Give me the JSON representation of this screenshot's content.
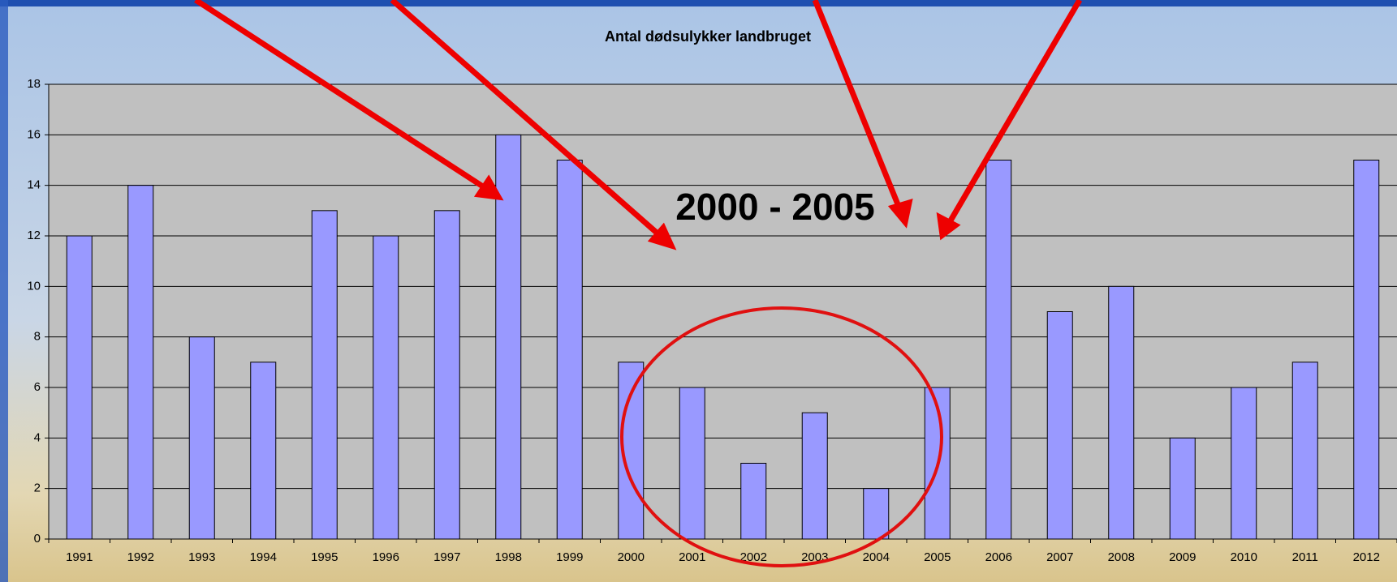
{
  "chart_data": {
    "type": "bar",
    "title": "Antal dødsulykker landbruget",
    "annotation": "2000 - 2005",
    "categories": [
      "1991",
      "1992",
      "1993",
      "1994",
      "1995",
      "1996",
      "1997",
      "1998",
      "1999",
      "2000",
      "2001",
      "2002",
      "2003",
      "2004",
      "2005",
      "2006",
      "2007",
      "2008",
      "2009",
      "2010",
      "2011",
      "2012"
    ],
    "values": [
      12,
      14,
      8,
      7,
      13,
      12,
      13,
      16,
      15,
      7,
      6,
      3,
      5,
      2,
      6,
      15,
      9,
      10,
      4,
      6,
      7,
      15
    ],
    "color": "#9999ff",
    "ylim": [
      0,
      18
    ],
    "yticks": [
      0,
      2,
      4,
      6,
      8,
      10,
      12,
      14,
      16,
      18
    ],
    "grid": true
  }
}
